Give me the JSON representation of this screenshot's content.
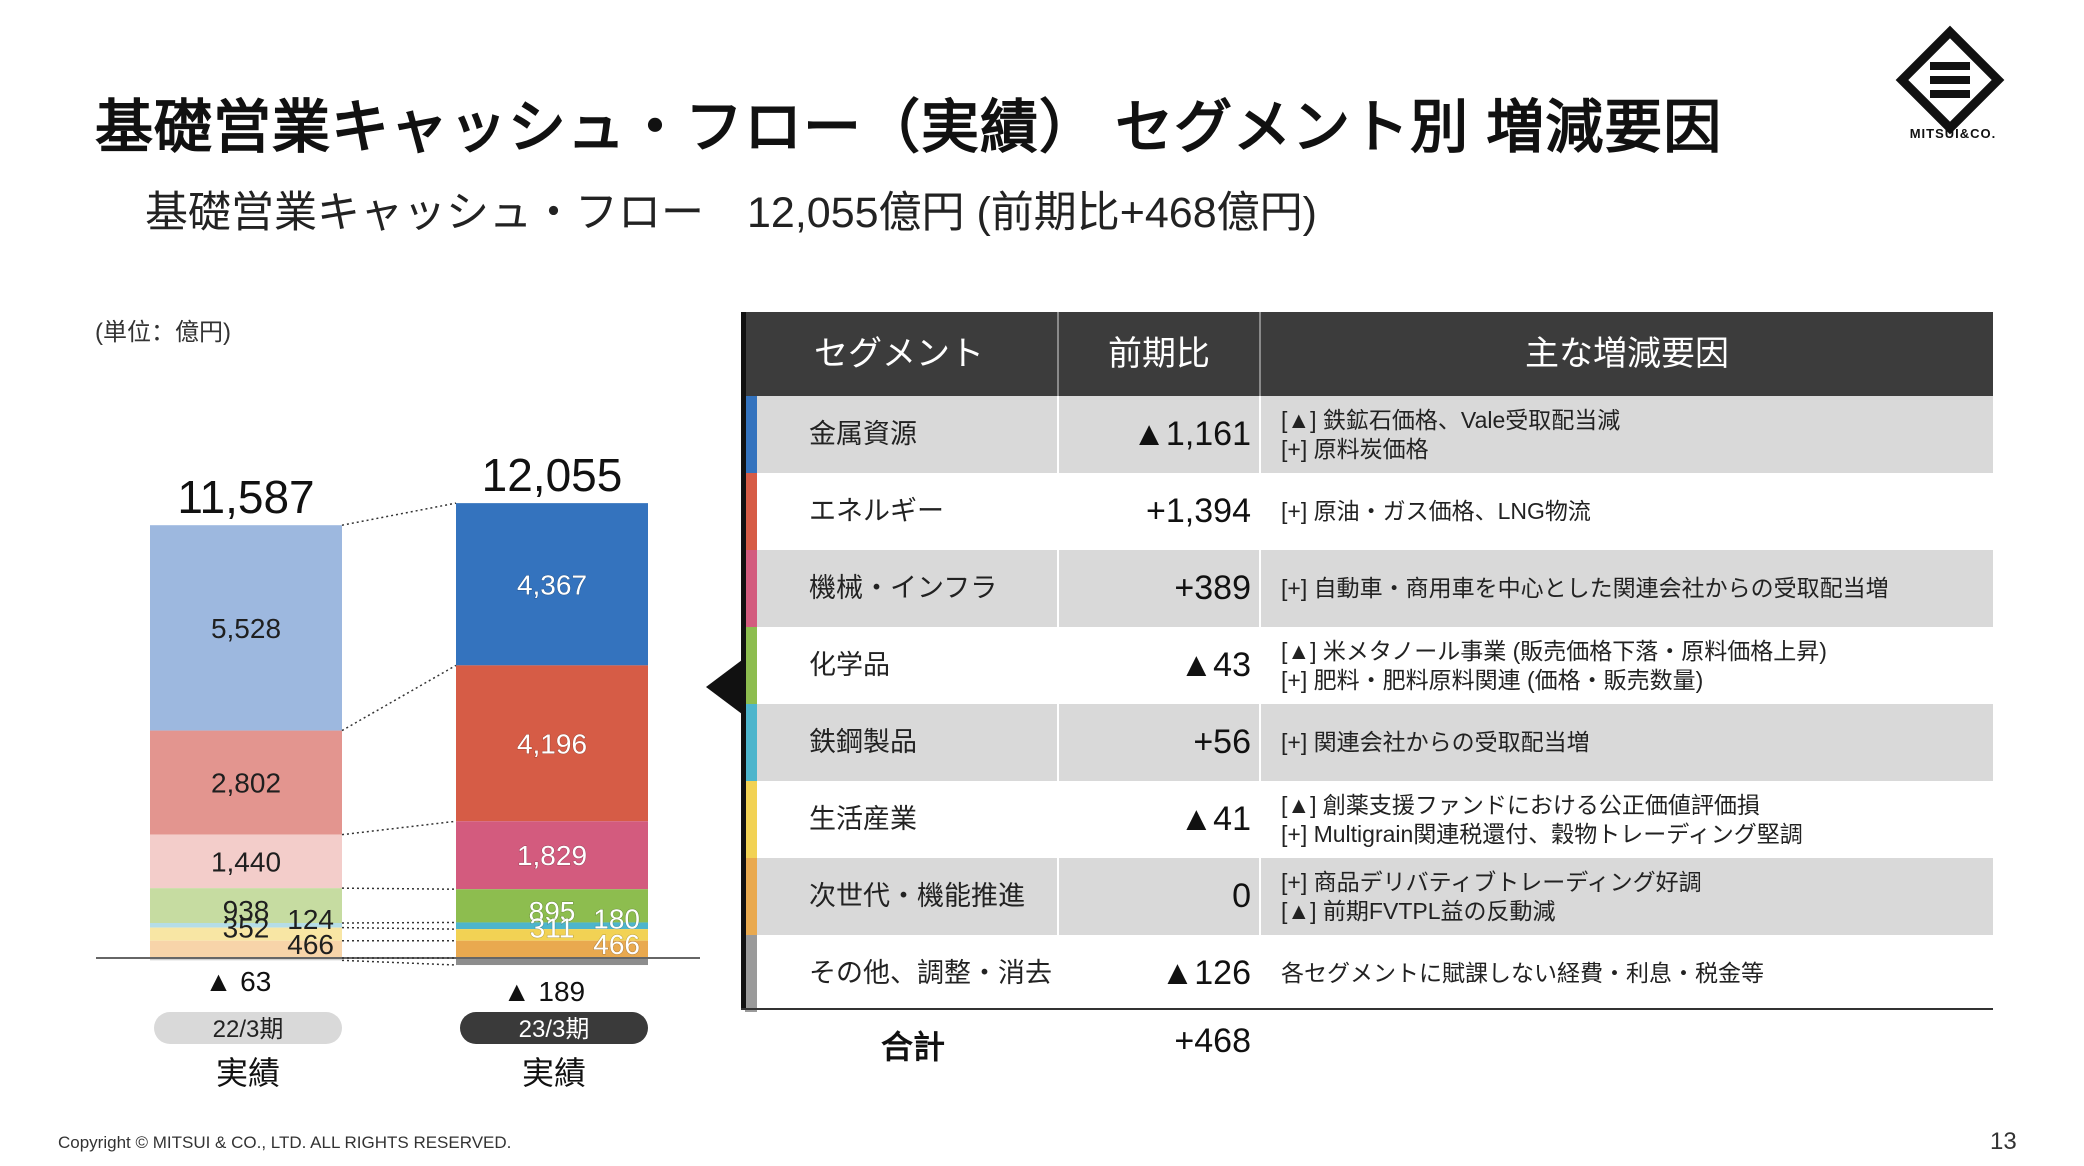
{
  "page": {
    "title": "基礎営業キャッシュ・フロー（実績） セグメント別 増減要因",
    "subtitle": "基礎営業キャッシュ・フロー　12,055億円 (前期比+468億円)",
    "unit": "(単位：億円)",
    "logo_text": "MITSUI&CO.",
    "copyright": "Copyright © MITSUI & CO., LTD. ALL RIGHTS RESERVED.",
    "page_number": "13"
  },
  "chart_data": {
    "type": "bar",
    "stacked": true,
    "categories": [
      "22/3期",
      "23/3期"
    ],
    "category_sub": [
      "実績",
      "実績"
    ],
    "totals": [
      "11,587",
      "12,055"
    ],
    "negative_labels": [
      "▲ 63",
      "▲ 189"
    ],
    "series": [
      {
        "name": "金属資源",
        "values": [
          5528,
          4367
        ],
        "labels": [
          "5,528",
          "4,367"
        ],
        "colors": [
          "#9db8df",
          "#3473be"
        ]
      },
      {
        "name": "エネルギー",
        "values": [
          2802,
          4196
        ],
        "labels": [
          "2,802",
          "4,196"
        ],
        "colors": [
          "#e3958f",
          "#d65c46"
        ]
      },
      {
        "name": "機械・インフラ",
        "values": [
          1440,
          1829
        ],
        "labels": [
          "1,440",
          "1,829"
        ],
        "colors": [
          "#f3cdca",
          "#d35b7e"
        ]
      },
      {
        "name": "化学品",
        "values": [
          938,
          895
        ],
        "labels": [
          "938",
          "895"
        ],
        "colors": [
          "#c6dca1",
          "#8dbd4f"
        ]
      },
      {
        "name": "鉄鋼製品",
        "values": [
          124,
          180
        ],
        "labels": [
          "124",
          "180"
        ],
        "colors": [
          "#b5dde7",
          "#4db5cc"
        ]
      },
      {
        "name": "生活産業",
        "values": [
          352,
          311
        ],
        "labels": [
          "352",
          "311"
        ],
        "colors": [
          "#f8e6a4",
          "#f2d254"
        ]
      },
      {
        "name": "次世代・機能推進",
        "values": [
          466,
          466
        ],
        "labels": [
          "466",
          "466"
        ],
        "colors": [
          "#f7d4a9",
          "#e9a94f"
        ]
      },
      {
        "name": "その他、調整・消去",
        "values": [
          -63,
          -189
        ],
        "labels": [
          "",
          ""
        ],
        "colors": [
          "#d2d2d2",
          "#8d8d8d"
        ]
      }
    ]
  },
  "table": {
    "headers": [
      "セグメント",
      "前期比",
      "主な増減要因"
    ],
    "rows": [
      {
        "name": "金属資源",
        "yoy": "▲1,161",
        "color": "#3473be",
        "reasons": [
          "[▲] 鉄鉱石価格、Vale受取配当減",
          "[+] 原料炭価格"
        ]
      },
      {
        "name": "エネルギー",
        "yoy": "+1,394",
        "color": "#d65c46",
        "reasons": [
          "[+] 原油・ガス価格、LNG物流"
        ]
      },
      {
        "name": "機械・インフラ",
        "yoy": "+389",
        "color": "#d35b7e",
        "reasons": [
          "[+] 自動車・商用車を中心とした関連会社からの受取配当増"
        ]
      },
      {
        "name": "化学品",
        "yoy": "▲43",
        "color": "#8dbd4f",
        "reasons": [
          "[▲] 米メタノール事業 (販売価格下落・原料価格上昇)",
          "[+] 肥料・肥料原料関連 (価格・販売数量)"
        ]
      },
      {
        "name": "鉄鋼製品",
        "yoy": "+56",
        "color": "#4db5cc",
        "reasons": [
          "[+] 関連会社からの受取配当増"
        ]
      },
      {
        "name": "生活産業",
        "yoy": "▲41",
        "color": "#f2d254",
        "reasons": [
          "[▲] 創薬支援ファンドにおける公正価値評価損",
          "[+] Multigrain関連税還付、穀物トレーディング堅調"
        ]
      },
      {
        "name": "次世代・機能推進",
        "yoy": "0",
        "color": "#e9a94f",
        "reasons": [
          "[+] 商品デリバティブトレーディング好調",
          "[▲] 前期FVTPL益の反動減"
        ]
      },
      {
        "name": "その他、調整・消去",
        "yoy": "▲126",
        "color": "#9a9a9a",
        "reasons": [
          "各セグメントに賦課しない経費・利息・税金等"
        ]
      }
    ],
    "total_label": "合計",
    "total_value": "+468"
  }
}
